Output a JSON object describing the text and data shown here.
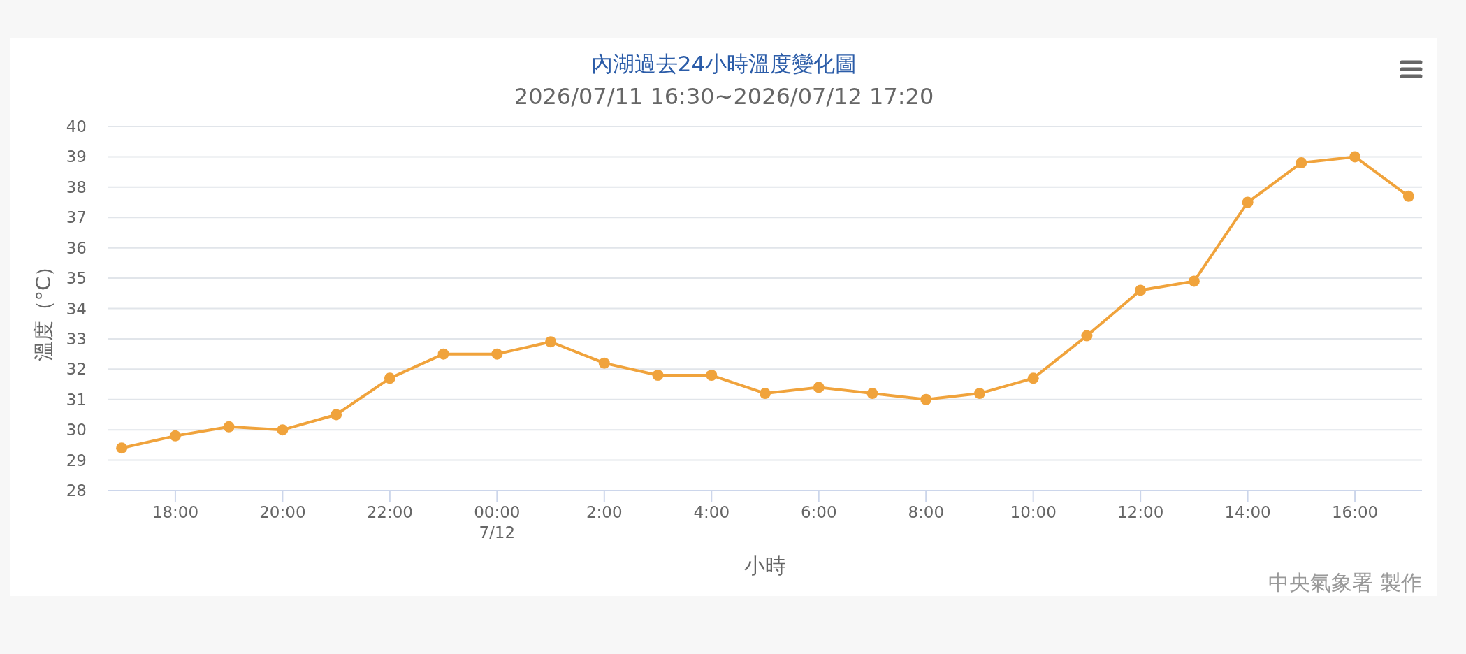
{
  "chart_data": {
    "type": "line",
    "title": "內湖過去24小時溫度變化圖",
    "subtitle": "2026/07/11 16:30~2026/07/12 17:20",
    "xlabel": "小時",
    "ylabel": "溫度（°C）",
    "annotations": [
      "中央氣象署 製作"
    ],
    "x": [
      "2026-07-11T17:00",
      "2026-07-11T18:00",
      "2026-07-11T19:00",
      "2026-07-11T20:00",
      "2026-07-11T21:00",
      "2026-07-11T22:00",
      "2026-07-11T23:00",
      "2026-07-12T00:00",
      "2026-07-12T01:00",
      "2026-07-12T02:00",
      "2026-07-12T03:00",
      "2026-07-12T04:00",
      "2026-07-12T05:00",
      "2026-07-12T06:00",
      "2026-07-12T07:00",
      "2026-07-12T08:00",
      "2026-07-12T09:00",
      "2026-07-12T10:00",
      "2026-07-12T11:00",
      "2026-07-12T12:00",
      "2026-07-12T13:00",
      "2026-07-12T14:00",
      "2026-07-12T15:00",
      "2026-07-12T16:00",
      "2026-07-12T17:00"
    ],
    "series": [
      {
        "color": "#f0a33c",
        "values": [
          29.4,
          29.8,
          30.1,
          30.0,
          30.5,
          31.7,
          32.5,
          32.5,
          32.9,
          32.2,
          31.8,
          31.8,
          31.2,
          31.4,
          31.2,
          31.0,
          31.2,
          31.7,
          33.1,
          34.6,
          34.9,
          37.5,
          38.8,
          39.0,
          37.7
        ]
      }
    ],
    "xlim": [
      "2026-07-11T16:45",
      "2026-07-12T17:15"
    ],
    "xticks": [
      {
        "value": "2026-07-11T18:00",
        "label": "18:00"
      },
      {
        "value": "2026-07-11T20:00",
        "label": "20:00"
      },
      {
        "value": "2026-07-11T22:00",
        "label": "22:00"
      },
      {
        "value": "2026-07-12T00:00",
        "label": "00:00\n7/12"
      },
      {
        "value": "2026-07-12T02:00",
        "label": "2:00"
      },
      {
        "value": "2026-07-12T04:00",
        "label": "4:00"
      },
      {
        "value": "2026-07-12T06:00",
        "label": "6:00"
      },
      {
        "value": "2026-07-12T08:00",
        "label": "8:00"
      },
      {
        "value": "2026-07-12T10:00",
        "label": "10:00"
      },
      {
        "value": "2026-07-12T12:00",
        "label": "12:00"
      },
      {
        "value": "2026-07-12T14:00",
        "label": "14:00"
      },
      {
        "value": "2026-07-12T16:00",
        "label": "16:00"
      }
    ],
    "ylim": [
      28,
      40
    ],
    "yticks": [
      28,
      29,
      30,
      31,
      32,
      33,
      34,
      35,
      36,
      37,
      38,
      39,
      40
    ],
    "grid": "y",
    "marker": "circle",
    "line_style": "solid"
  }
}
